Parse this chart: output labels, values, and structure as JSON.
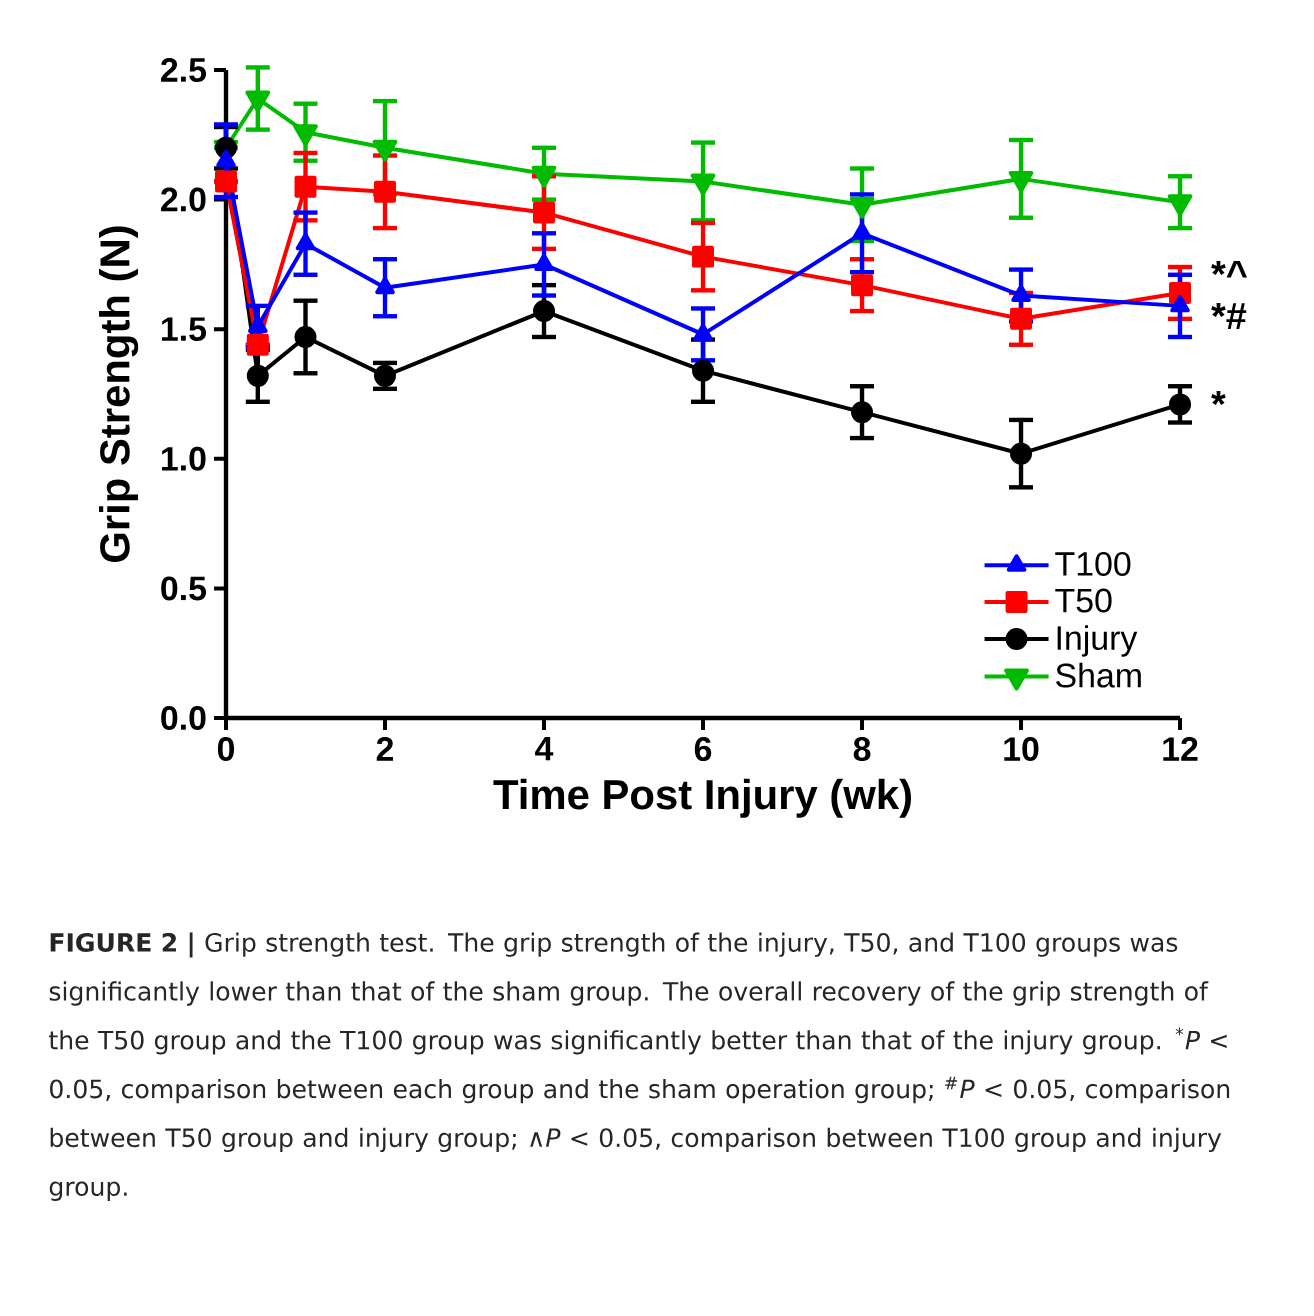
{
  "chart_data": {
    "type": "line",
    "xlabel": "Time Post Injury (wk)",
    "ylabel": "Grip Strength (N)",
    "x": [
      0,
      0.4,
      1,
      2,
      4,
      6,
      8,
      10,
      12
    ],
    "series": [
      {
        "name": "T100",
        "color": "#0000ff",
        "marker": "triangle",
        "values": [
          2.15,
          1.51,
          1.83,
          1.66,
          1.75,
          1.48,
          1.87,
          1.63,
          1.59
        ],
        "errors": [
          0.14,
          0.08,
          0.12,
          0.11,
          0.12,
          0.1,
          0.15,
          0.1,
          0.12
        ]
      },
      {
        "name": "T50",
        "color": "#ff0000",
        "marker": "square",
        "values": [
          2.07,
          1.44,
          2.05,
          2.03,
          1.95,
          1.78,
          1.67,
          1.54,
          1.64
        ],
        "errors": [
          null,
          null,
          0.13,
          0.14,
          0.14,
          0.13,
          0.1,
          0.1,
          0.1
        ]
      },
      {
        "name": "Injury",
        "color": "#000000",
        "marker": "circle",
        "values": [
          2.2,
          1.32,
          1.47,
          1.32,
          1.57,
          1.34,
          1.18,
          1.02,
          1.21
        ],
        "errors": [
          0.08,
          0.1,
          0.14,
          0.05,
          0.1,
          0.12,
          0.1,
          0.13,
          0.07
        ]
      },
      {
        "name": "Sham",
        "color": "#00bb00",
        "marker": "triangle-down",
        "values": [
          2.2,
          2.39,
          2.26,
          2.2,
          2.1,
          2.07,
          1.98,
          2.08,
          1.99
        ],
        "errors": [
          null,
          0.12,
          0.11,
          0.18,
          0.1,
          0.15,
          0.14,
          0.15,
          0.1
        ]
      }
    ],
    "xlim": [
      0,
      12
    ],
    "ylim": [
      0,
      2.5
    ],
    "xticks": [
      0,
      2,
      4,
      6,
      8,
      10,
      12
    ],
    "yticks": [
      {
        "value": 0,
        "label": "0.0"
      },
      {
        "value": 0.5,
        "label": "0.5"
      },
      {
        "value": 1,
        "label": "1.0"
      },
      {
        "value": 1.5,
        "label": "1.5"
      },
      {
        "value": 2,
        "label": "2.0"
      },
      {
        "value": 2.5,
        "label": "2.5"
      }
    ],
    "legend": "bottom right",
    "grid": false,
    "line_style": "solid",
    "annotations": [
      "*^",
      "*#",
      "*",
      "**FIGURE 2 |** Grip strength test. The grip strength of the injury, T50, and T100 groups was significantly lower than that of the sham group. The overall recovery of the grip strength of the T50 group and the T100 group was significantly better than that of the injury group. $^{*}$*P* < 0.05, comparison between each group and the sham operation group; $^{#}$*P* < 0.05, comparison between T50 group and injury group; ∧*P* < 0.05, comparison between T100 group and injury group."
    ]
  }
}
